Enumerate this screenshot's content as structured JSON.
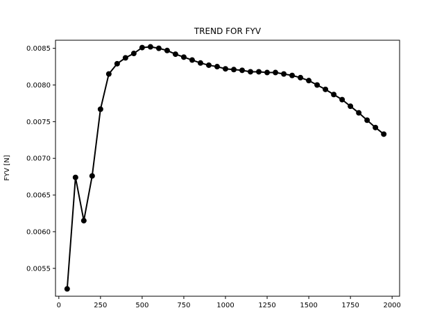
{
  "chart_data": {
    "type": "line",
    "title": "TREND FOR FYV",
    "xlabel": "",
    "ylabel": "FYV [N]",
    "xlim": [
      -20,
      2045
    ],
    "ylim": [
      0.00512,
      0.00861
    ],
    "x_ticks": [
      0,
      250,
      500,
      750,
      1000,
      1250,
      1500,
      1750,
      2000
    ],
    "y_ticks": [
      0.0055,
      0.006,
      0.0065,
      0.007,
      0.0075,
      0.008,
      0.0085
    ],
    "y_tick_labels": [
      "0.0055",
      "0.0060",
      "0.0065",
      "0.0070",
      "0.0075",
      "0.0080",
      "0.0085"
    ],
    "grid": false,
    "series": [
      {
        "color": "#000000",
        "marker": "circle",
        "x": [
          50,
          100,
          150,
          200,
          250,
          300,
          350,
          400,
          450,
          500,
          550,
          600,
          650,
          700,
          750,
          800,
          850,
          900,
          950,
          1000,
          1050,
          1100,
          1150,
          1200,
          1250,
          1300,
          1350,
          1400,
          1450,
          1500,
          1550,
          1600,
          1650,
          1700,
          1750,
          1800,
          1850,
          1900,
          1950
        ],
        "y": [
          0.00522,
          0.00674,
          0.00615,
          0.00676,
          0.00767,
          0.00815,
          0.00829,
          0.00837,
          0.00843,
          0.00851,
          0.00852,
          0.0085,
          0.00847,
          0.00842,
          0.00838,
          0.00834,
          0.0083,
          0.00827,
          0.00825,
          0.00822,
          0.00821,
          0.0082,
          0.00818,
          0.00818,
          0.00817,
          0.00817,
          0.00815,
          0.00813,
          0.0081,
          0.00806,
          0.008,
          0.00794,
          0.00787,
          0.0078,
          0.00771,
          0.00762,
          0.00752,
          0.00742,
          0.00733
        ]
      }
    ]
  }
}
